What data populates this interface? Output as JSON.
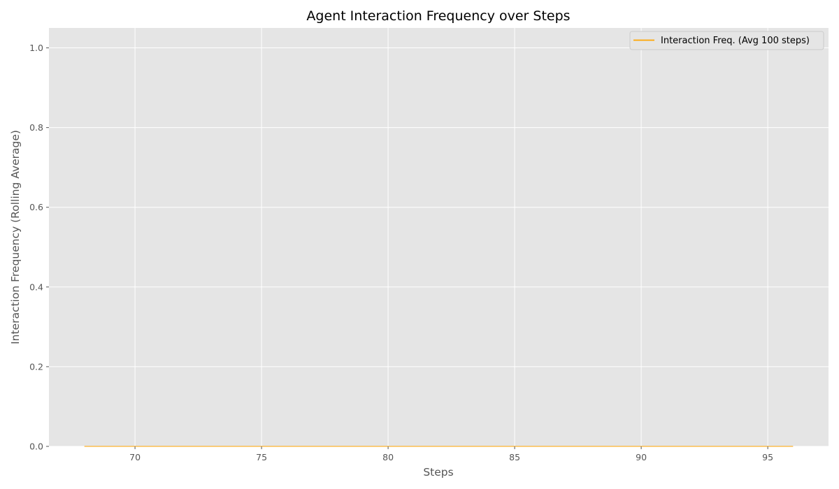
{
  "chart_data": {
    "type": "line",
    "title": "Agent Interaction Frequency over Steps",
    "xlabel": "Steps",
    "ylabel": "Interaction Frequency (Rolling Average)",
    "xlim": [
      66.6,
      97.4
    ],
    "ylim": [
      0.0,
      1.05
    ],
    "xticks": [
      70,
      75,
      80,
      85,
      90,
      95
    ],
    "yticks": [
      0.0,
      0.2,
      0.4,
      0.6,
      0.8,
      1.0
    ],
    "xtick_labels": [
      "70",
      "75",
      "80",
      "85",
      "90",
      "95"
    ],
    "ytick_labels": [
      "0.0",
      "0.2",
      "0.4",
      "0.6",
      "0.8",
      "1.0"
    ],
    "grid": true,
    "legend_position": "top-right",
    "series": [
      {
        "name": "Interaction Freq. (Avg 100 steps)",
        "color": "#ffa500",
        "x": [
          68,
          69,
          70,
          71,
          72,
          73,
          74,
          75,
          76,
          77,
          78,
          79,
          80,
          81,
          82,
          83,
          84,
          85,
          86,
          87,
          88,
          89,
          90,
          91,
          92,
          93,
          94,
          95,
          96
        ],
        "y": [
          0,
          0,
          0,
          0,
          0,
          0,
          0,
          0,
          0,
          0,
          0,
          0,
          0,
          0,
          0,
          0,
          0,
          0,
          0,
          0,
          0,
          0,
          0,
          0,
          0,
          0,
          0,
          0,
          0
        ]
      }
    ]
  }
}
